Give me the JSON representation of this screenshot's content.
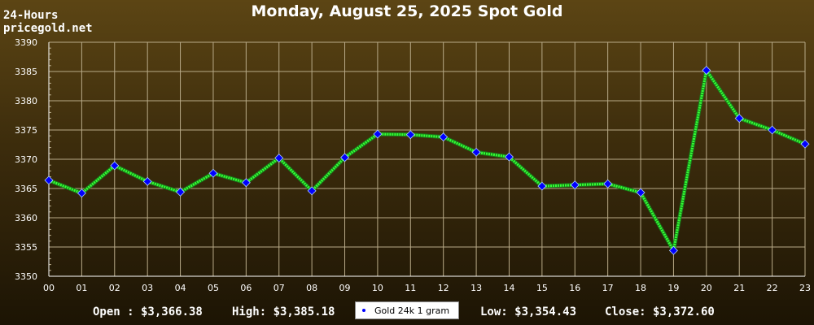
{
  "header": {
    "line1": "24-Hours",
    "line2": "pricegold.net"
  },
  "stats": {
    "open": "Open : $3,366.38",
    "high": "High: $3,385.18",
    "low": "Low: $3,354.43",
    "close": "Close: $3,372.60"
  },
  "colors": {
    "line": "#33ff33",
    "marker": "#0000ff",
    "grid": "#b8aa88"
  },
  "chart_data": {
    "type": "line",
    "title": "Monday, August 25, 2025 Spot Gold",
    "xlabel": "",
    "ylabel": "",
    "ylim": [
      3350,
      3390
    ],
    "yticks": [
      3350,
      3355,
      3360,
      3365,
      3370,
      3375,
      3380,
      3385,
      3390
    ],
    "x": [
      "00",
      "01",
      "02",
      "03",
      "04",
      "05",
      "06",
      "07",
      "08",
      "09",
      "10",
      "11",
      "12",
      "13",
      "14",
      "15",
      "16",
      "17",
      "18",
      "19",
      "20",
      "21",
      "22",
      "23"
    ],
    "series": [
      {
        "name": "Gold 24k 1 gram",
        "values": [
          3366.4,
          3364.2,
          3368.9,
          3366.2,
          3364.4,
          3367.6,
          3366.0,
          3370.2,
          3364.6,
          3370.3,
          3374.3,
          3374.2,
          3373.8,
          3371.2,
          3370.4,
          3365.4,
          3365.6,
          3365.8,
          3364.3,
          3354.4,
          3385.2,
          3377.0,
          3375.0,
          3372.6
        ]
      }
    ],
    "grid": true,
    "legend": "bottom-center"
  }
}
